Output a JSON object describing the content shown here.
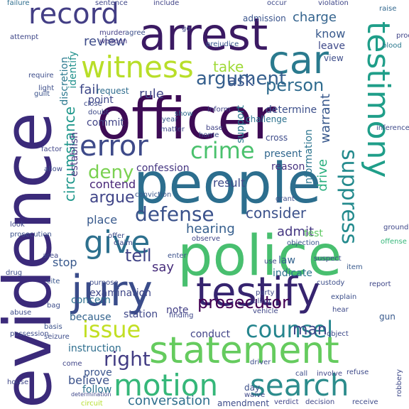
{
  "words": [
    {
      "text": "evidence",
      "color": "#3b2a7a"
    },
    {
      "text": "officer",
      "color": "#3d0b55"
    },
    {
      "text": "people",
      "color": "#2c6e8e"
    },
    {
      "text": "police",
      "color": "#48bf6f"
    },
    {
      "text": "arrest",
      "color": "#3b1a63"
    },
    {
      "text": "testify",
      "color": "#36246f"
    },
    {
      "text": "statement",
      "color": "#65cb5e"
    },
    {
      "text": "jury",
      "color": "#3a4c8a"
    },
    {
      "text": "testimony",
      "color": "#1f9e89"
    },
    {
      "text": "car",
      "color": "#2a7a8e"
    },
    {
      "text": "record",
      "color": "#433e85"
    },
    {
      "text": "witness",
      "color": "#b8de29"
    },
    {
      "text": "error",
      "color": "#3e4a89"
    },
    {
      "text": "motion",
      "color": "#35b779"
    },
    {
      "text": "search",
      "color": "#2c8c8c"
    },
    {
      "text": "counsel",
      "color": "#25858e"
    },
    {
      "text": "give",
      "color": "#2d708e"
    },
    {
      "text": "crime",
      "color": "#4ac16d"
    },
    {
      "text": "issue",
      "color": "#c2df23"
    },
    {
      "text": "suppress",
      "color": "#238a8d"
    },
    {
      "text": "defense",
      "color": "#3b528b"
    },
    {
      "text": "argument",
      "color": "#355f8d"
    },
    {
      "text": "prosecutor",
      "color": "#440154"
    },
    {
      "text": "person",
      "color": "#2f6b8e"
    },
    {
      "text": "right",
      "color": "#433d84"
    },
    {
      "text": "conversation",
      "color": "#2e6f8e"
    },
    {
      "text": "deny",
      "color": "#7ad151"
    },
    {
      "text": "man",
      "color": "#3f4788"
    },
    {
      "text": "tell",
      "color": "#414487"
    },
    {
      "text": "ask",
      "color": "#39568c"
    },
    {
      "text": "take",
      "color": "#a0da39"
    },
    {
      "text": "circumstance",
      "color": "#1f978b"
    },
    {
      "text": "argue",
      "color": "#404588"
    },
    {
      "text": "consider",
      "color": "#3b518b"
    },
    {
      "text": "hearing",
      "color": "#355e8d"
    },
    {
      "text": "admit",
      "color": "#453781"
    },
    {
      "text": "warrant",
      "color": "#38588c"
    },
    {
      "text": "drive",
      "color": "#29af7f"
    },
    {
      "text": "charge",
      "color": "#33638d"
    },
    {
      "text": "review",
      "color": "#3e4c8a"
    },
    {
      "text": "rule",
      "color": "#404688"
    },
    {
      "text": "fail",
      "color": "#3e4989"
    },
    {
      "text": "say",
      "color": "#472d7b"
    },
    {
      "text": "believe",
      "color": "#3b528b"
    },
    {
      "text": "stop",
      "color": "#38588c"
    },
    {
      "text": "follow",
      "color": "#2c728e"
    },
    {
      "text": "prove",
      "color": "#3a548c"
    },
    {
      "text": "concern",
      "color": "#2d708e"
    },
    {
      "text": "instruction",
      "color": "#2e6e8e"
    },
    {
      "text": "station",
      "color": "#3f4889"
    },
    {
      "text": "conduct",
      "color": "#414487"
    },
    {
      "text": "result",
      "color": "#3e4a89"
    },
    {
      "text": "contend",
      "color": "#482677"
    },
    {
      "text": "place",
      "color": "#38598c"
    },
    {
      "text": "support",
      "color": "#2a788e"
    },
    {
      "text": "determine",
      "color": "#3c4f8a"
    },
    {
      "text": "present",
      "color": "#31678e"
    },
    {
      "text": "reason",
      "color": "#46337f"
    },
    {
      "text": "information",
      "color": "#2b748e"
    },
    {
      "text": "establish",
      "color": "#453882"
    },
    {
      "text": "confession",
      "color": "#453581"
    },
    {
      "text": "test",
      "color": "#5ec962"
    },
    {
      "text": "law",
      "color": "#33638d"
    },
    {
      "text": "indicate",
      "color": "#2c728e"
    },
    {
      "text": "examination",
      "color": "#3f4788"
    },
    {
      "text": "note",
      "color": "#423f85"
    },
    {
      "text": "know",
      "color": "#38598c"
    },
    {
      "text": "leave",
      "color": "#3e4989"
    },
    {
      "text": "admission",
      "color": "#3a548c"
    },
    {
      "text": "discretion",
      "color": "#2a788e"
    },
    {
      "text": "identify",
      "color": "#21918c"
    },
    {
      "text": "view",
      "color": "#3d4d8a"
    },
    {
      "text": "point",
      "color": "#3f4889"
    },
    {
      "text": "commit",
      "color": "#414487"
    },
    {
      "text": "request",
      "color": "#2f6c8e"
    },
    {
      "text": "because",
      "color": "#33638d"
    },
    {
      "text": "sentence",
      "color": "#3f4788"
    },
    {
      "text": "include",
      "color": "#414487"
    },
    {
      "text": "occur",
      "color": "#3e4a89"
    },
    {
      "text": "violation",
      "color": "#3f4788"
    },
    {
      "text": "raise",
      "color": "#31678e"
    },
    {
      "text": "failure",
      "color": "#2e6e8e"
    },
    {
      "text": "murder",
      "color": "#433e85"
    },
    {
      "text": "agree",
      "color": "#3c4f8a"
    },
    {
      "text": "weapon",
      "color": "#453882"
    },
    {
      "text": "prejudice",
      "color": "#38588c"
    },
    {
      "text": "blood",
      "color": "#2a788e"
    },
    {
      "text": "require",
      "color": "#3d4d8a"
    },
    {
      "text": "guilt",
      "color": "#3b528b"
    },
    {
      "text": "challenge",
      "color": "#2c728e"
    },
    {
      "text": "inform",
      "color": "#404688"
    },
    {
      "text": "cross",
      "color": "#3e4c8a"
    },
    {
      "text": "home",
      "color": "#3d4e8a"
    },
    {
      "text": "base",
      "color": "#414487"
    },
    {
      "text": "matter",
      "color": "#3f4889"
    },
    {
      "text": "year",
      "color": "#38598c"
    },
    {
      "text": "show",
      "color": "#2f6b8e"
    },
    {
      "text": "doubt",
      "color": "#3e4a89"
    },
    {
      "text": "allow",
      "color": "#3e4c8a"
    },
    {
      "text": "conviction",
      "color": "#39568c"
    },
    {
      "text": "prosecution",
      "color": "#3b518b"
    },
    {
      "text": "look",
      "color": "#404588"
    },
    {
      "text": "area",
      "color": "#3f4788"
    },
    {
      "text": "offer",
      "color": "#3d4d8a"
    },
    {
      "text": "grant",
      "color": "#3d4e8a"
    },
    {
      "text": "objection",
      "color": "#3a548c"
    },
    {
      "text": "claim",
      "color": "#3f4889"
    },
    {
      "text": "observe",
      "color": "#404588"
    },
    {
      "text": "use",
      "color": "#3e4a89"
    },
    {
      "text": "suspect",
      "color": "#3d4e8a"
    },
    {
      "text": "item",
      "color": "#38598c"
    },
    {
      "text": "report",
      "color": "#3f4788"
    },
    {
      "text": "offense",
      "color": "#35b779"
    },
    {
      "text": "purpose",
      "color": "#3e4c8a"
    },
    {
      "text": "cite",
      "color": "#39568c"
    },
    {
      "text": "enter",
      "color": "#3b518b"
    },
    {
      "text": "party",
      "color": "#3f4889"
    },
    {
      "text": "ruling",
      "color": "#404588"
    },
    {
      "text": "hear",
      "color": "#3e4a89"
    },
    {
      "text": "explain",
      "color": "#3c4f8a"
    },
    {
      "text": "object",
      "color": "#3e4a89"
    },
    {
      "text": "gun",
      "color": "#38598c"
    },
    {
      "text": "bag",
      "color": "#3d4d8a"
    },
    {
      "text": "basis",
      "color": "#3b528b"
    },
    {
      "text": "possession",
      "color": "#3e4c8a"
    },
    {
      "text": "finding",
      "color": "#3f4788"
    },
    {
      "text": "call",
      "color": "#3d4e8a"
    },
    {
      "text": "involve",
      "color": "#404588"
    },
    {
      "text": "refuse",
      "color": "#3e4a89"
    },
    {
      "text": "day",
      "color": "#3c4f8a"
    },
    {
      "text": "waive",
      "color": "#3f4889"
    },
    {
      "text": "amendment",
      "color": "#3e4c8a"
    },
    {
      "text": "verdict",
      "color": "#404588"
    },
    {
      "text": "decision",
      "color": "#3f4788"
    },
    {
      "text": "receive",
      "color": "#3e4a89"
    },
    {
      "text": "circuit",
      "color": "#b5de2b"
    },
    {
      "text": "driver",
      "color": "#3d4e8a"
    },
    {
      "text": "house",
      "color": "#3f4788"
    },
    {
      "text": "robbery",
      "color": "#3e4a89"
    },
    {
      "text": "come",
      "color": "#404588"
    },
    {
      "text": "determination",
      "color": "#3f4889"
    },
    {
      "text": "abuse",
      "color": "#3e4c8a"
    },
    {
      "text": "seizure",
      "color": "#3d4d8a"
    },
    {
      "text": "attempt",
      "color": "#3f4788"
    },
    {
      "text": "close",
      "color": "#3e4a89"
    },
    {
      "text": "light",
      "color": "#3d4e8a"
    },
    {
      "text": "factor",
      "color": "#404588"
    },
    {
      "text": "drug",
      "color": "#3e4c8a"
    },
    {
      "text": "ground",
      "color": "#3f4889"
    },
    {
      "text": "vehicle",
      "color": "#3f4788"
    },
    {
      "text": "inference",
      "color": "#3e4a89"
    },
    {
      "text": "custody",
      "color": "#3d4e8a"
    },
    {
      "text": "proof",
      "color": "#404588"
    },
    {
      "text": "go",
      "color": "#3f4788"
    }
  ]
}
